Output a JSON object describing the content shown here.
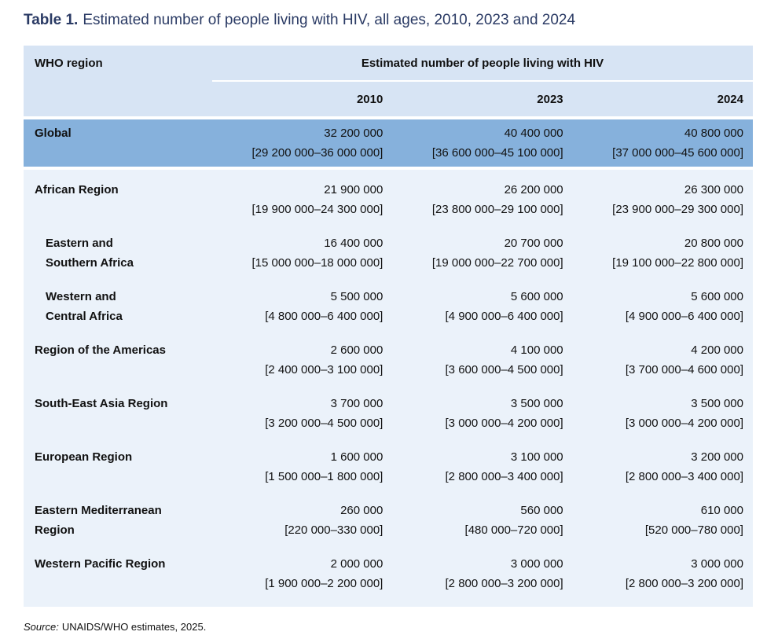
{
  "title": {
    "label": "Table 1.",
    "text": "Estimated number of people living with HIV, all ages, 2010, 2023 and 2024"
  },
  "colors": {
    "title_navy": "#2a3a64",
    "header_bg": "#d7e4f4",
    "global_row_bg": "#86b1dc",
    "body_bg": "#ebf2fa",
    "text": "#111111"
  },
  "table": {
    "region_header": "WHO region",
    "group_header": "Estimated number of people living with HIV",
    "year_columns": [
      "2010",
      "2023",
      "2024"
    ],
    "global_row": {
      "region": "Global",
      "values": [
        {
          "estimate": "32 200 000",
          "range": "[29 200 000–36 000 000]"
        },
        {
          "estimate": "40 400 000",
          "range": "[36 600 000–45 100 000]"
        },
        {
          "estimate": "40 800 000",
          "range": "[37 000 000–45 600 000]"
        }
      ]
    },
    "rows": [
      {
        "region": "African Region",
        "values": [
          {
            "estimate": "21 900 000",
            "range": "[19 900 000–24 300 000]"
          },
          {
            "estimate": "26 200 000",
            "range": "[23 800 000–29 100 000]"
          },
          {
            "estimate": "26 300 000",
            "range": "[23 900 000–29 300 000]"
          }
        ]
      },
      {
        "region": "Eastern and\nSouthern Africa",
        "values": [
          {
            "estimate": "16 400 000",
            "range": "[15 000 000–18 000 000]"
          },
          {
            "estimate": "20 700 000",
            "range": "[19 000 000–22 700 000]"
          },
          {
            "estimate": "20 800 000",
            "range": "[19 100 000–22 800 000]"
          }
        ]
      },
      {
        "region": "Western and\nCentral Africa",
        "values": [
          {
            "estimate": "5 500 000",
            "range": "[4 800 000–6 400 000]"
          },
          {
            "estimate": "5 600 000",
            "range": "[4 900 000–6 400 000]"
          },
          {
            "estimate": "5 600 000",
            "range": "[4 900 000–6 400 000]"
          }
        ]
      },
      {
        "region": "Region of the Americas",
        "values": [
          {
            "estimate": "2 600 000",
            "range": "[2 400 000–3 100 000]"
          },
          {
            "estimate": "4 100 000",
            "range": "[3 600 000–4 500 000]"
          },
          {
            "estimate": "4 200 000",
            "range": "[3 700 000–4 600 000]"
          }
        ]
      },
      {
        "region": "South-East Asia Region",
        "values": [
          {
            "estimate": "3 700 000",
            "range": "[3 200 000–4 500 000]"
          },
          {
            "estimate": "3 500 000",
            "range": "[3 000 000–4 200 000]"
          },
          {
            "estimate": "3 500 000",
            "range": "[3 000 000–4 200 000]"
          }
        ]
      },
      {
        "region": "European Region",
        "values": [
          {
            "estimate": "1 600 000",
            "range": "[1 500 000–1 800 000]"
          },
          {
            "estimate": "3 100 000",
            "range": "[2 800 000–3 400 000]"
          },
          {
            "estimate": "3 200 000",
            "range": "[2 800 000–3 400 000]"
          }
        ]
      },
      {
        "region": "Eastern Mediterranean\nRegion",
        "values": [
          {
            "estimate": "260 000",
            "range": "[220 000–330 000]"
          },
          {
            "estimate": "560 000",
            "range": "[480 000–720 000]"
          },
          {
            "estimate": "610 000",
            "range": "[520 000–780 000]"
          }
        ]
      },
      {
        "region": "Western Pacific Region",
        "values": [
          {
            "estimate": "2 000 000",
            "range": "[1 900 000–2 200 000]"
          },
          {
            "estimate": "3 000 000",
            "range": "[2 800 000–3 200 000]"
          },
          {
            "estimate": "3 000 000",
            "range": "[2 800 000–3 200 000]"
          }
        ]
      }
    ]
  },
  "source": {
    "label": "Source:",
    "text": "UNAIDS/WHO estimates, 2025."
  }
}
